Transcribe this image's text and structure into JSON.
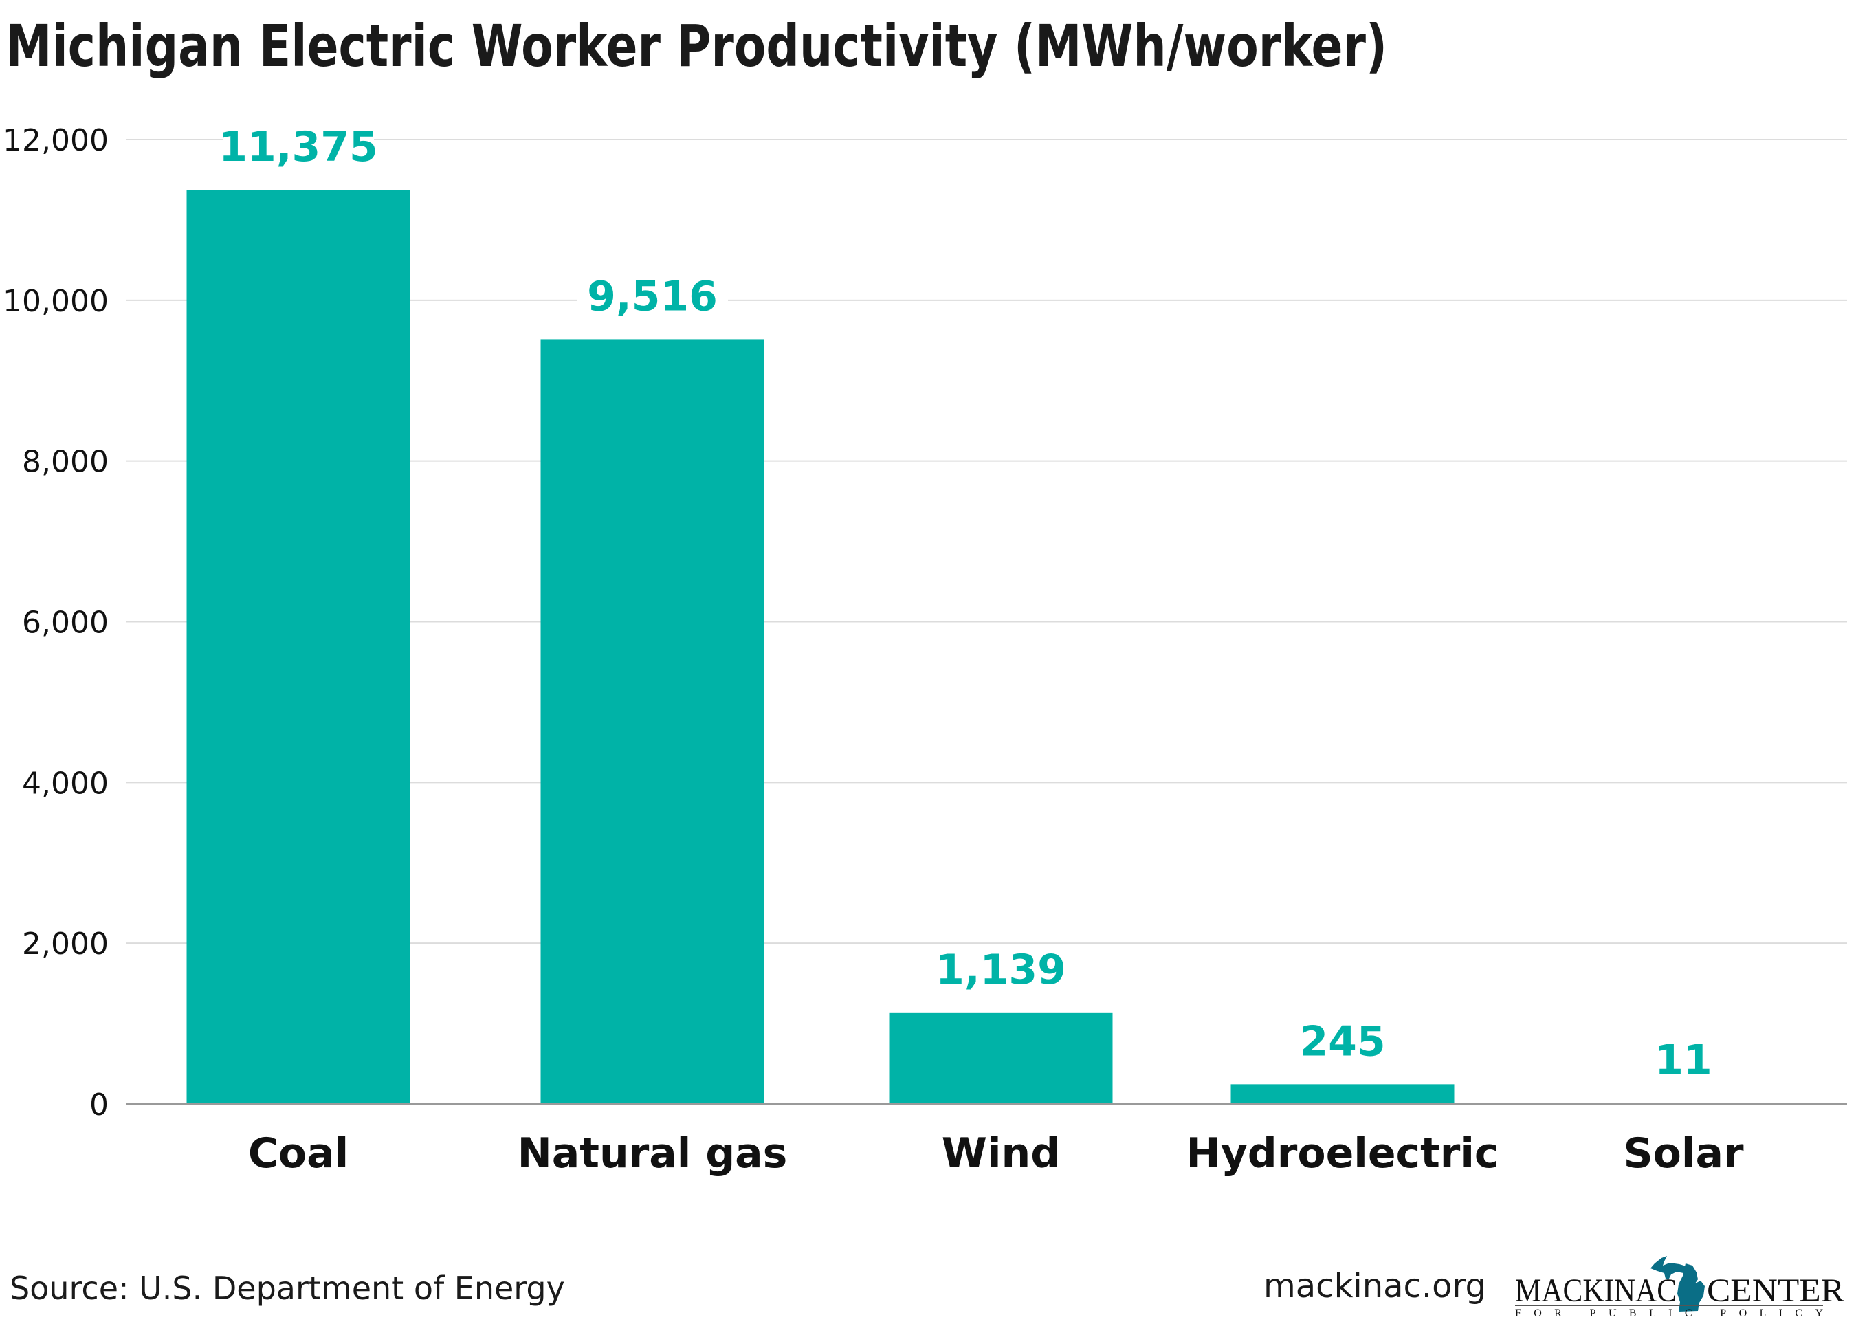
{
  "chart_data": {
    "type": "bar",
    "title": "Michigan Electric Worker Productivity (MWh/worker)",
    "categories": [
      "Coal",
      "Natural gas",
      "Wind",
      "Hydroelectric",
      "Solar"
    ],
    "values": [
      11375,
      9516,
      1139,
      245,
      11
    ],
    "data_labels": [
      "11,375",
      "9,516",
      "1,139",
      "245",
      "11"
    ],
    "ylim": [
      0,
      12000
    ],
    "yticks": [
      0,
      2000,
      4000,
      6000,
      8000,
      10000,
      12000
    ],
    "ytick_labels": [
      "0",
      "2,000",
      "4,000",
      "6,000",
      "8,000",
      "10,000",
      "12,000"
    ],
    "xlabel": "",
    "ylabel": "",
    "grid": true,
    "bar_color": "#00b3a7"
  },
  "footer": {
    "source": "Source: U.S. Department of Energy",
    "website": "mackinac.org",
    "logo": {
      "line1_left": "MACKINAC",
      "line1_right": "CENTER",
      "line2": "FOR PUBLIC POLICY",
      "color": "#0a6e86"
    }
  }
}
